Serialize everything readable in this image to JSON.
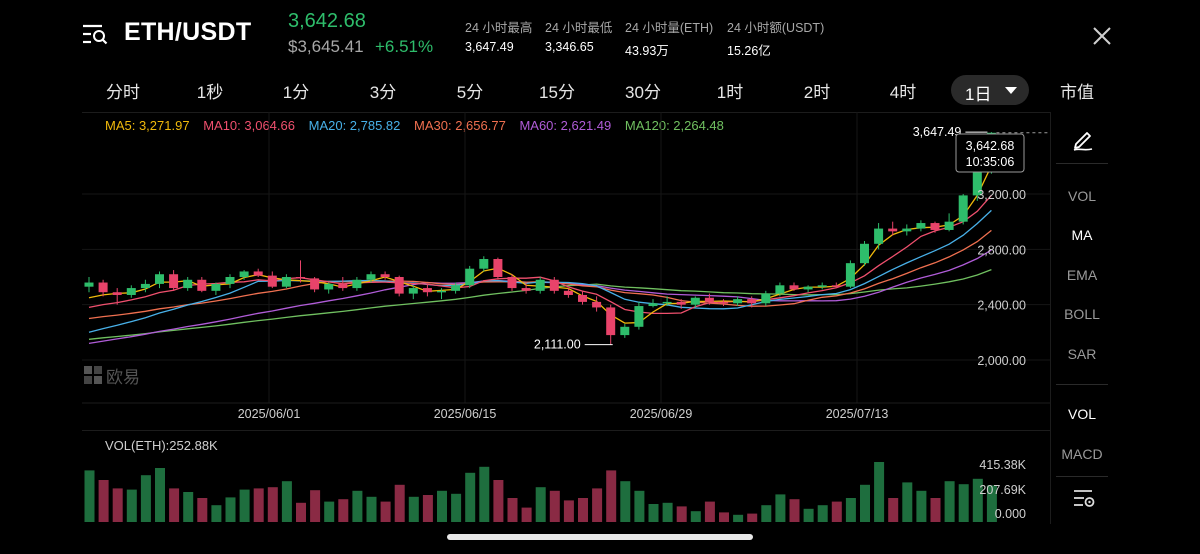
{
  "header": {
    "pair": "ETH/USDT",
    "last_price": "3,642.68",
    "fiat_price": "$3,645.41",
    "change": "+6.51%",
    "stats": [
      {
        "label": "24 小时最高",
        "value": "3,647.49"
      },
      {
        "label": "24 小时最低",
        "value": "3,346.65"
      },
      {
        "label": "24 小时量(ETH)",
        "value": "43.93万"
      },
      {
        "label": "24 小时额(USDT)",
        "value": "15.26亿"
      }
    ]
  },
  "tabs": [
    "分时",
    "1秒",
    "1分",
    "3分",
    "5分",
    "15分",
    "30分",
    "1时",
    "2时",
    "4时"
  ],
  "active_tab": "1日",
  "market_cap_tab": "市值",
  "ma_legend": {
    "ma5": "MA5: 3,271.97",
    "ma10": "MA10: 3,064.66",
    "ma20": "MA20: 2,785.82",
    "ma30": "MA30: 2,656.77",
    "ma60": "MA60: 2,621.49",
    "ma120": "MA120: 2,264.48"
  },
  "colors": {
    "up": "#2ebd6b",
    "down": "#e8436a",
    "ma5": "#f0b90b",
    "ma10": "#f0506e",
    "ma20": "#48b0e8",
    "ma30": "#f07050",
    "ma60": "#b05cd8",
    "ma120": "#70c060"
  },
  "chart": {
    "y_ticks": [
      "3,200.00",
      "2,800.00",
      "2,400.00",
      "2,000.00"
    ],
    "x_ticks": [
      "2025/06/01",
      "2025/06/15",
      "2025/06/29",
      "2025/07/13"
    ],
    "high_marker": "3,647.49",
    "low_marker": "2,111.00",
    "current_price": "3,642.68",
    "countdown": "10:35:06",
    "watermark": "欧易",
    "volume_label": "VOL(ETH):252.88K",
    "vol_ticks": [
      "415.38K",
      "207.69K",
      "0.000"
    ]
  },
  "side_tools": {
    "top": [
      "VOL",
      "MA",
      "EMA",
      "BOLL",
      "SAR"
    ],
    "bottom": [
      "VOL",
      "MACD"
    ],
    "active": [
      "MA",
      "VOL"
    ]
  },
  "chart_data": {
    "type": "candlestick",
    "interval": "1日",
    "y_axis_ticks": [
      3200,
      2800,
      2400,
      2000
    ],
    "x_axis_ticks": [
      "2025/06/01",
      "2025/06/15",
      "2025/06/29",
      "2025/07/13"
    ],
    "candles": [
      [
        2530,
        2600,
        2490,
        2560
      ],
      [
        2560,
        2580,
        2460,
        2490
      ],
      [
        2490,
        2520,
        2400,
        2470
      ],
      [
        2470,
        2540,
        2450,
        2520
      ],
      [
        2520,
        2580,
        2490,
        2550
      ],
      [
        2550,
        2640,
        2520,
        2620
      ],
      [
        2620,
        2650,
        2500,
        2520
      ],
      [
        2520,
        2600,
        2500,
        2580
      ],
      [
        2580,
        2600,
        2490,
        2500
      ],
      [
        2500,
        2560,
        2470,
        2550
      ],
      [
        2550,
        2620,
        2520,
        2600
      ],
      [
        2600,
        2650,
        2580,
        2640
      ],
      [
        2640,
        2660,
        2600,
        2610
      ],
      [
        2610,
        2640,
        2520,
        2530
      ],
      [
        2530,
        2620,
        2520,
        2600
      ],
      [
        2600,
        2720,
        2560,
        2590
      ],
      [
        2590,
        2600,
        2490,
        2510
      ],
      [
        2510,
        2560,
        2480,
        2550
      ],
      [
        2550,
        2600,
        2500,
        2520
      ],
      [
        2520,
        2600,
        2500,
        2580
      ],
      [
        2580,
        2640,
        2560,
        2620
      ],
      [
        2620,
        2640,
        2580,
        2600
      ],
      [
        2600,
        2610,
        2460,
        2480
      ],
      [
        2480,
        2540,
        2440,
        2520
      ],
      [
        2520,
        2550,
        2460,
        2490
      ],
      [
        2490,
        2520,
        2440,
        2500
      ],
      [
        2500,
        2560,
        2480,
        2540
      ],
      [
        2540,
        2680,
        2520,
        2660
      ],
      [
        2660,
        2750,
        2640,
        2730
      ],
      [
        2730,
        2740,
        2580,
        2600
      ],
      [
        2600,
        2620,
        2500,
        2520
      ],
      [
        2520,
        2560,
        2480,
        2500
      ],
      [
        2500,
        2600,
        2480,
        2580
      ],
      [
        2580,
        2600,
        2480,
        2500
      ],
      [
        2500,
        2520,
        2450,
        2470
      ],
      [
        2470,
        2500,
        2400,
        2420
      ],
      [
        2420,
        2460,
        2350,
        2380
      ],
      [
        2380,
        2400,
        2111,
        2180
      ],
      [
        2180,
        2260,
        2160,
        2240
      ],
      [
        2240,
        2420,
        2220,
        2390
      ],
      [
        2390,
        2440,
        2380,
        2410
      ],
      [
        2410,
        2460,
        2390,
        2420
      ],
      [
        2420,
        2440,
        2370,
        2400
      ],
      [
        2400,
        2460,
        2380,
        2450
      ],
      [
        2450,
        2480,
        2400,
        2420
      ],
      [
        2420,
        2440,
        2390,
        2410
      ],
      [
        2410,
        2460,
        2390,
        2440
      ],
      [
        2440,
        2460,
        2380,
        2410
      ],
      [
        2410,
        2500,
        2390,
        2480
      ],
      [
        2480,
        2560,
        2460,
        2540
      ],
      [
        2540,
        2560,
        2500,
        2510
      ],
      [
        2510,
        2540,
        2490,
        2530
      ],
      [
        2530,
        2560,
        2510,
        2540
      ],
      [
        2540,
        2560,
        2520,
        2530
      ],
      [
        2530,
        2720,
        2520,
        2700
      ],
      [
        2700,
        2860,
        2680,
        2840
      ],
      [
        2840,
        2990,
        2800,
        2950
      ],
      [
        2950,
        3000,
        2900,
        2930
      ],
      [
        2930,
        2980,
        2900,
        2950
      ],
      [
        2950,
        3010,
        2930,
        2990
      ],
      [
        2990,
        3000,
        2920,
        2940
      ],
      [
        2940,
        3060,
        2930,
        3000
      ],
      [
        3000,
        3200,
        2980,
        3190
      ],
      [
        3190,
        3400,
        3150,
        3380
      ],
      [
        3380,
        3647.49,
        3346.65,
        3642.68
      ]
    ],
    "volumes": [
      0.86,
      0.7,
      0.56,
      0.54,
      0.78,
      0.9,
      0.56,
      0.5,
      0.4,
      0.28,
      0.41,
      0.54,
      0.56,
      0.58,
      0.68,
      0.32,
      0.53,
      0.34,
      0.38,
      0.52,
      0.42,
      0.34,
      0.62,
      0.42,
      0.45,
      0.52,
      0.47,
      0.82,
      0.92,
      0.7,
      0.4,
      0.24,
      0.58,
      0.52,
      0.36,
      0.4,
      0.56,
      0.86,
      0.68,
      0.52,
      0.3,
      0.32,
      0.26,
      0.18,
      0.34,
      0.16,
      0.12,
      0.14,
      0.28,
      0.46,
      0.38,
      0.22,
      0.28,
      0.34,
      0.4,
      0.62,
      1.0,
      0.4,
      0.66,
      0.52,
      0.4,
      0.68,
      0.63,
      0.72,
      0.61
    ],
    "high_label": 3647.49,
    "low_label": 2111.0,
    "current": 3642.68
  }
}
